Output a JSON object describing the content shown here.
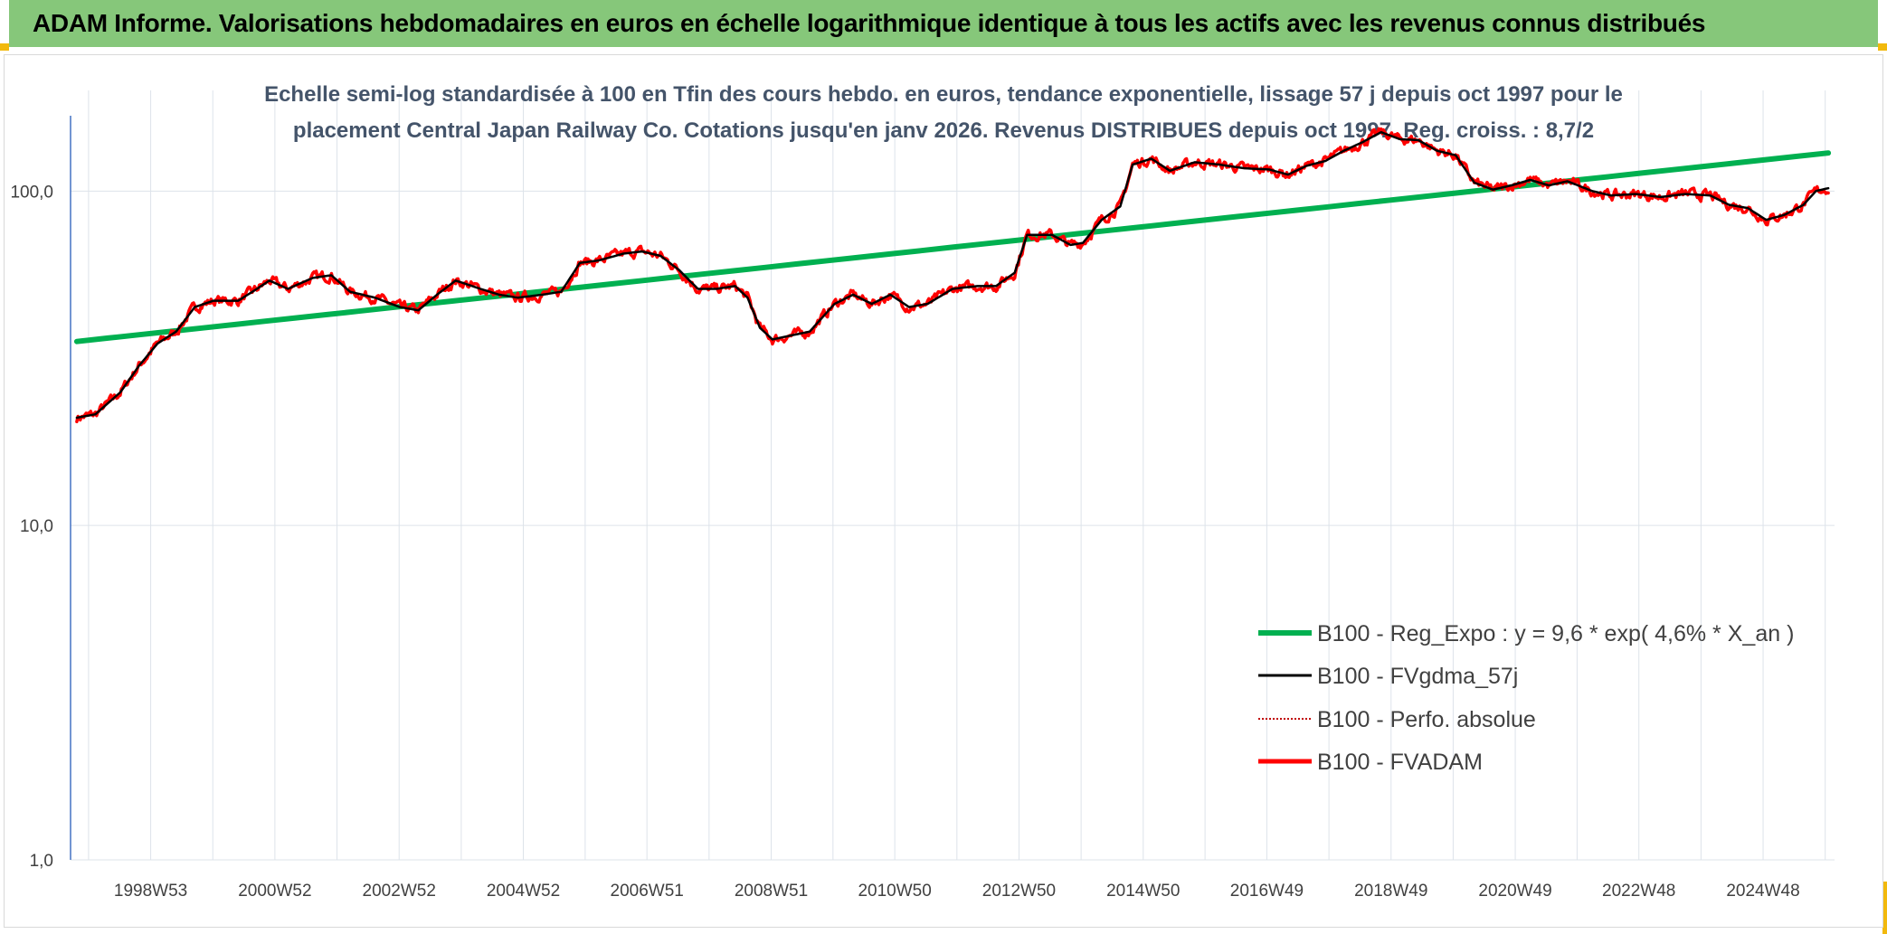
{
  "header": {
    "title": "ADAM Informe. Valorisations hebdomadaires en euros en échelle logarithmique identique à tous les actifs avec les revenus connus distribués"
  },
  "chart_data": {
    "type": "line",
    "title_lines": [
      "Echelle semi-log standardisée à 100 en Tfin des cours hebdo. en euros, tendance exponentielle, lissage 57 j depuis oct 1997 pour le",
      "placement Central Japan Railway Co. Cotations jusqu'en janv 2026. Revenus DISTRIBUES depuis oct 1997. Reg. croiss. : 8,7/2"
    ],
    "yscale": "log",
    "ylim": [
      1,
      200
    ],
    "yticks": [
      "1,0",
      "10,0",
      "100,0"
    ],
    "xlim": [
      1997.7,
      2026.1
    ],
    "xticks": [
      {
        "label": "1998W53",
        "x": 1998.99
      },
      {
        "label": "2000W52",
        "x": 2000.99
      },
      {
        "label": "2002W52",
        "x": 2002.99
      },
      {
        "label": "2004W52",
        "x": 2004.99
      },
      {
        "label": "2006W51",
        "x": 2006.98
      },
      {
        "label": "2008W51",
        "x": 2008.98
      },
      {
        "label": "2010W50",
        "x": 2010.97
      },
      {
        "label": "2012W50",
        "x": 2012.97
      },
      {
        "label": "2014W50",
        "x": 2014.97
      },
      {
        "label": "2016W49",
        "x": 2016.96
      },
      {
        "label": "2018W49",
        "x": 2018.96
      },
      {
        "label": "2020W49",
        "x": 2020.96
      },
      {
        "label": "2022W48",
        "x": 2022.95
      },
      {
        "label": "2024W48",
        "x": 2024.95
      }
    ],
    "grid": "vertical",
    "legend_position": "bottom-right",
    "series": [
      {
        "name": "B100 - Reg_Expo : y = 9,6 * exp( 4,6% *  X_an )",
        "color": "#00b050",
        "style": "regression",
        "points": [
          [
            1997.8,
            35.5
          ],
          [
            2026.0,
            130.0
          ]
        ]
      },
      {
        "name": "B100 - FVgdma_57j",
        "color": "#000000",
        "style": "smooth",
        "points": [
          [
            1997.8,
            21
          ],
          [
            1998.1,
            21.5
          ],
          [
            1998.5,
            25
          ],
          [
            1998.8,
            30
          ],
          [
            1999.1,
            35
          ],
          [
            1999.4,
            38
          ],
          [
            1999.7,
            45
          ],
          [
            2000.0,
            47
          ],
          [
            2000.4,
            47
          ],
          [
            2000.7,
            51
          ],
          [
            2000.9,
            54
          ],
          [
            2001.2,
            51
          ],
          [
            2001.6,
            55
          ],
          [
            2001.9,
            56
          ],
          [
            2002.2,
            50
          ],
          [
            2002.6,
            48
          ],
          [
            2003.0,
            45
          ],
          [
            2003.3,
            44
          ],
          [
            2003.6,
            49
          ],
          [
            2003.9,
            54
          ],
          [
            2004.3,
            51
          ],
          [
            2004.6,
            49
          ],
          [
            2004.9,
            48
          ],
          [
            2005.3,
            49
          ],
          [
            2005.6,
            50
          ],
          [
            2005.9,
            61
          ],
          [
            2006.2,
            62
          ],
          [
            2006.6,
            65
          ],
          [
            2006.9,
            66
          ],
          [
            2007.2,
            64
          ],
          [
            2007.5,
            58
          ],
          [
            2007.8,
            51
          ],
          [
            2008.1,
            51
          ],
          [
            2008.4,
            52
          ],
          [
            2008.6,
            48
          ],
          [
            2008.8,
            39
          ],
          [
            2009.0,
            36
          ],
          [
            2009.3,
            37
          ],
          [
            2009.6,
            38
          ],
          [
            2010.0,
            46
          ],
          [
            2010.3,
            49
          ],
          [
            2010.6,
            46
          ],
          [
            2010.9,
            49
          ],
          [
            2011.2,
            45
          ],
          [
            2011.5,
            46
          ],
          [
            2011.9,
            51
          ],
          [
            2012.3,
            52
          ],
          [
            2012.6,
            52
          ],
          [
            2012.9,
            57
          ],
          [
            2013.1,
            74
          ],
          [
            2013.5,
            74
          ],
          [
            2013.8,
            69
          ],
          [
            2014.0,
            70
          ],
          [
            2014.3,
            82
          ],
          [
            2014.6,
            90
          ],
          [
            2014.8,
            120
          ],
          [
            2015.1,
            125
          ],
          [
            2015.4,
            115
          ],
          [
            2015.8,
            122
          ],
          [
            2016.2,
            120
          ],
          [
            2016.6,
            117
          ],
          [
            2017.0,
            116
          ],
          [
            2017.3,
            112
          ],
          [
            2017.6,
            119
          ],
          [
            2017.9,
            123
          ],
          [
            2018.2,
            132
          ],
          [
            2018.5,
            140
          ],
          [
            2018.8,
            150
          ],
          [
            2019.1,
            143
          ],
          [
            2019.4,
            142
          ],
          [
            2019.7,
            132
          ],
          [
            2020.0,
            128
          ],
          [
            2020.3,
            106
          ],
          [
            2020.6,
            101
          ],
          [
            2020.9,
            104
          ],
          [
            2021.2,
            108
          ],
          [
            2021.5,
            104
          ],
          [
            2021.8,
            107
          ],
          [
            2022.2,
            100
          ],
          [
            2022.5,
            97
          ],
          [
            2022.9,
            98
          ],
          [
            2023.3,
            96
          ],
          [
            2023.7,
            98
          ],
          [
            2024.1,
            97
          ],
          [
            2024.4,
            91
          ],
          [
            2024.7,
            89
          ],
          [
            2025.0,
            82
          ],
          [
            2025.3,
            85
          ],
          [
            2025.6,
            91
          ],
          [
            2025.8,
            100
          ],
          [
            2026.0,
            102
          ]
        ]
      },
      {
        "name": "B100 - Perfo. absolue",
        "color": "#c00000",
        "style": "dotted",
        "points": []
      },
      {
        "name": "B100 - FVADAM",
        "color": "#ff0000",
        "style": "noisy",
        "points": [
          [
            1997.8,
            21
          ],
          [
            1998.1,
            21.5
          ],
          [
            1998.5,
            25
          ],
          [
            1998.8,
            30
          ],
          [
            1999.1,
            35
          ],
          [
            1999.4,
            38
          ],
          [
            1999.7,
            45
          ],
          [
            2000.0,
            47
          ],
          [
            2000.4,
            47
          ],
          [
            2000.7,
            51
          ],
          [
            2000.9,
            54
          ],
          [
            2001.2,
            51
          ],
          [
            2001.6,
            55
          ],
          [
            2001.9,
            56
          ],
          [
            2002.2,
            50
          ],
          [
            2002.6,
            48
          ],
          [
            2003.0,
            45
          ],
          [
            2003.3,
            44
          ],
          [
            2003.6,
            49
          ],
          [
            2003.9,
            54
          ],
          [
            2004.3,
            51
          ],
          [
            2004.6,
            49
          ],
          [
            2004.9,
            48
          ],
          [
            2005.3,
            49
          ],
          [
            2005.6,
            50
          ],
          [
            2005.9,
            61
          ],
          [
            2006.2,
            62
          ],
          [
            2006.6,
            65
          ],
          [
            2006.9,
            66
          ],
          [
            2007.2,
            64
          ],
          [
            2007.5,
            58
          ],
          [
            2007.8,
            51
          ],
          [
            2008.1,
            51
          ],
          [
            2008.4,
            52
          ],
          [
            2008.6,
            48
          ],
          [
            2008.8,
            39
          ],
          [
            2009.0,
            36
          ],
          [
            2009.3,
            37
          ],
          [
            2009.6,
            38
          ],
          [
            2010.0,
            46
          ],
          [
            2010.3,
            49
          ],
          [
            2010.6,
            46
          ],
          [
            2010.9,
            49
          ],
          [
            2011.2,
            45
          ],
          [
            2011.5,
            46
          ],
          [
            2011.9,
            51
          ],
          [
            2012.3,
            52
          ],
          [
            2012.6,
            52
          ],
          [
            2012.9,
            57
          ],
          [
            2013.1,
            74
          ],
          [
            2013.5,
            74
          ],
          [
            2013.8,
            69
          ],
          [
            2014.0,
            70
          ],
          [
            2014.3,
            82
          ],
          [
            2014.6,
            90
          ],
          [
            2014.8,
            120
          ],
          [
            2015.1,
            125
          ],
          [
            2015.4,
            115
          ],
          [
            2015.8,
            122
          ],
          [
            2016.2,
            120
          ],
          [
            2016.6,
            117
          ],
          [
            2017.0,
            116
          ],
          [
            2017.3,
            112
          ],
          [
            2017.6,
            119
          ],
          [
            2017.9,
            123
          ],
          [
            2018.2,
            132
          ],
          [
            2018.5,
            140
          ],
          [
            2018.8,
            150
          ],
          [
            2019.1,
            143
          ],
          [
            2019.4,
            142
          ],
          [
            2019.7,
            132
          ],
          [
            2020.0,
            128
          ],
          [
            2020.3,
            106
          ],
          [
            2020.6,
            101
          ],
          [
            2020.9,
            104
          ],
          [
            2021.2,
            108
          ],
          [
            2021.5,
            104
          ],
          [
            2021.8,
            107
          ],
          [
            2022.2,
            100
          ],
          [
            2022.5,
            97
          ],
          [
            2022.9,
            98
          ],
          [
            2023.3,
            96
          ],
          [
            2023.7,
            98
          ],
          [
            2024.1,
            97
          ],
          [
            2024.4,
            91
          ],
          [
            2024.7,
            89
          ],
          [
            2025.0,
            82
          ],
          [
            2025.3,
            85
          ],
          [
            2025.6,
            91
          ],
          [
            2025.8,
            100
          ],
          [
            2026.0,
            102
          ]
        ]
      }
    ]
  }
}
